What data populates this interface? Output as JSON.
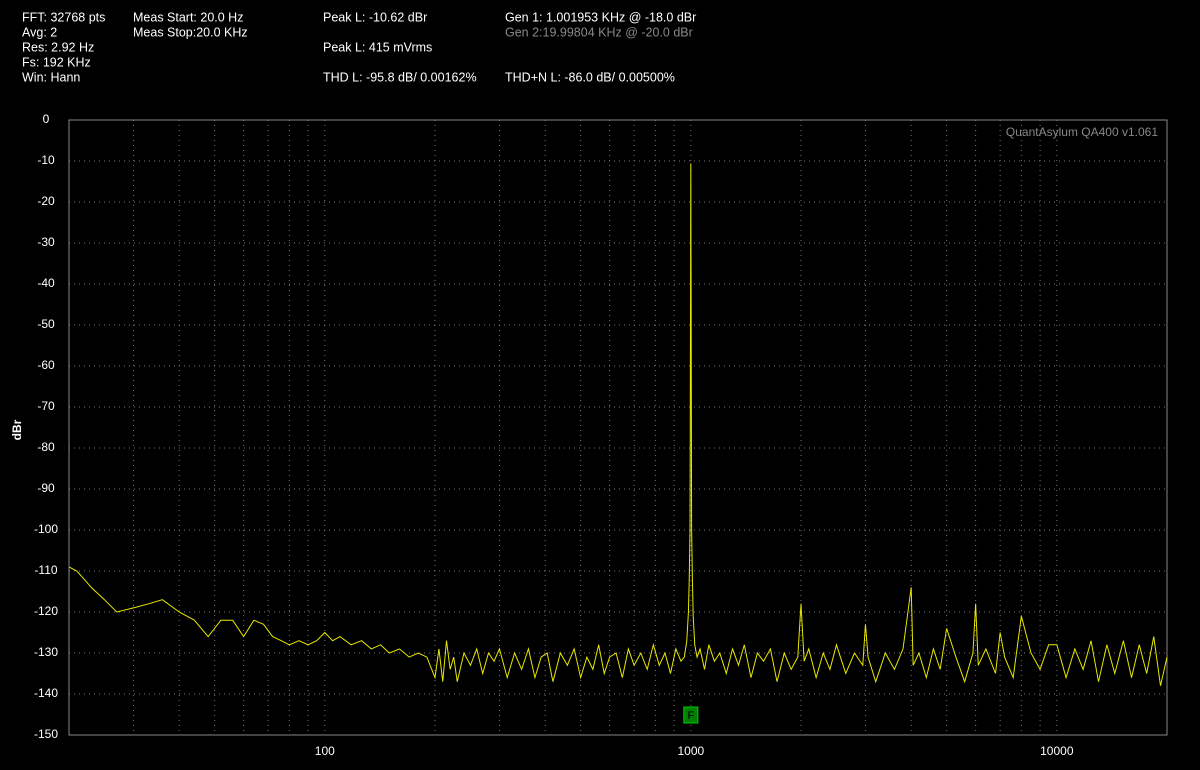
{
  "header": {
    "fft": "FFT: 32768 pts",
    "avg": "Avg: 2",
    "res": "Res: 2.92 Hz",
    "fs": "Fs: 192 KHz",
    "win": "Win: Hann",
    "meas_start": "Meas Start: 20.0 Hz",
    "meas_stop": "Meas Stop:20.0 KHz",
    "peak_dbr": "Peak L: -10.62 dBr",
    "peak_mv": "Peak L: 415 mVrms",
    "thd": "THD L: -95.8 dB/ 0.00162%",
    "gen1": "Gen 1: 1.001953 KHz @ -18.0  dBr",
    "gen2": "Gen 2:19.99804 KHz @ -20.0  dBr",
    "thdn": "THD+N L: -86.0 dB/ 0.00500%"
  },
  "chart_data": {
    "type": "line",
    "ylabel": "dBr",
    "watermark": "QuantAsylum QA400 v1.061",
    "log_x": true,
    "grid": true,
    "xlim": [
      20,
      20000
    ],
    "xticks": [
      100,
      1000,
      10000
    ],
    "xminor": [
      30,
      40,
      50,
      60,
      70,
      80,
      90,
      200,
      300,
      400,
      500,
      600,
      700,
      800,
      900,
      2000,
      3000,
      4000,
      5000,
      6000,
      7000,
      8000,
      9000
    ],
    "ylim": [
      -150,
      0
    ],
    "yticks": [
      0,
      -10,
      -20,
      -30,
      -40,
      -50,
      -60,
      -70,
      -80,
      -90,
      -100,
      -110,
      -120,
      -130,
      -140,
      -150
    ],
    "marker": {
      "label": "F",
      "x": 1000,
      "color": "#008000"
    },
    "x": [
      20,
      21,
      22,
      23,
      25,
      27,
      30,
      33,
      36,
      40,
      44,
      48,
      52,
      56,
      60,
      64,
      68,
      72,
      76,
      80,
      85,
      90,
      95,
      100,
      105,
      110,
      118,
      126,
      134,
      142,
      150,
      160,
      170,
      180,
      190,
      200,
      205,
      210,
      215,
      220,
      225,
      230,
      240,
      250,
      260,
      270,
      280,
      290,
      300,
      315,
      330,
      345,
      360,
      375,
      390,
      405,
      420,
      440,
      460,
      480,
      500,
      520,
      540,
      560,
      580,
      600,
      625,
      650,
      675,
      700,
      730,
      760,
      790,
      820,
      850,
      880,
      910,
      940,
      960,
      975,
      985,
      990,
      995,
      1000,
      1005,
      1010,
      1015,
      1025,
      1040,
      1060,
      1090,
      1120,
      1160,
      1200,
      1250,
      1300,
      1350,
      1400,
      1460,
      1520,
      1580,
      1650,
      1720,
      1800,
      1880,
      1960,
      2000,
      2040,
      2100,
      2200,
      2300,
      2400,
      2500,
      2650,
      2800,
      2950,
      3000,
      3050,
      3200,
      3400,
      3600,
      3800,
      4000,
      4050,
      4200,
      4400,
      4600,
      4800,
      5000,
      5300,
      5600,
      5900,
      6000,
      6100,
      6400,
      6800,
      7000,
      7200,
      7600,
      8000,
      8500,
      9000,
      9500,
      10000,
      10600,
      11200,
      11800,
      12400,
      13000,
      13700,
      14400,
      15200,
      16000,
      16800,
      17600,
      18400,
      19200,
      20000
    ],
    "series": [
      {
        "color": "#e8e800",
        "values": [
          -109,
          -110,
          -112,
          -114,
          -117,
          -120,
          -119,
          -118,
          -117,
          -120,
          -122,
          -126,
          -122,
          -122,
          -126,
          -122,
          -123,
          -126,
          -127,
          -128,
          -127,
          -128,
          -127,
          -125,
          -127,
          -126,
          -128,
          -127,
          -129,
          -128,
          -130,
          -129,
          -131,
          -130,
          -131,
          -136,
          -129,
          -137,
          -127,
          -134,
          -131,
          -137,
          -130,
          -133,
          -129,
          -135,
          -130,
          -132,
          -129,
          -136,
          -130,
          -134,
          -129,
          -136,
          -131,
          -130,
          -137,
          -130,
          -133,
          -129,
          -136,
          -131,
          -134,
          -128,
          -135,
          -131,
          -130,
          -136,
          -129,
          -133,
          -130,
          -134,
          -128,
          -133,
          -130,
          -135,
          -129,
          -132,
          -131,
          -127,
          -120,
          -112,
          -100,
          -10.62,
          -100,
          -112,
          -121,
          -128,
          -131,
          -129,
          -134,
          -128,
          -132,
          -130,
          -135,
          -129,
          -133,
          -128,
          -136,
          -130,
          -132,
          -129,
          -137,
          -130,
          -134,
          -131,
          -118,
          -132,
          -129,
          -136,
          -130,
          -134,
          -128,
          -135,
          -130,
          -133,
          -123,
          -131,
          -137,
          -130,
          -134,
          -129,
          -114,
          -133,
          -130,
          -136,
          -129,
          -134,
          -124,
          -131,
          -137,
          -130,
          -118,
          -133,
          -129,
          -135,
          -125,
          -131,
          -136,
          -121,
          -130,
          -134,
          -128,
          -128,
          -136,
          -129,
          -134,
          -127,
          -137,
          -128,
          -135,
          -127,
          -136,
          -128,
          -135,
          -126,
          -138,
          -131
        ]
      }
    ]
  }
}
